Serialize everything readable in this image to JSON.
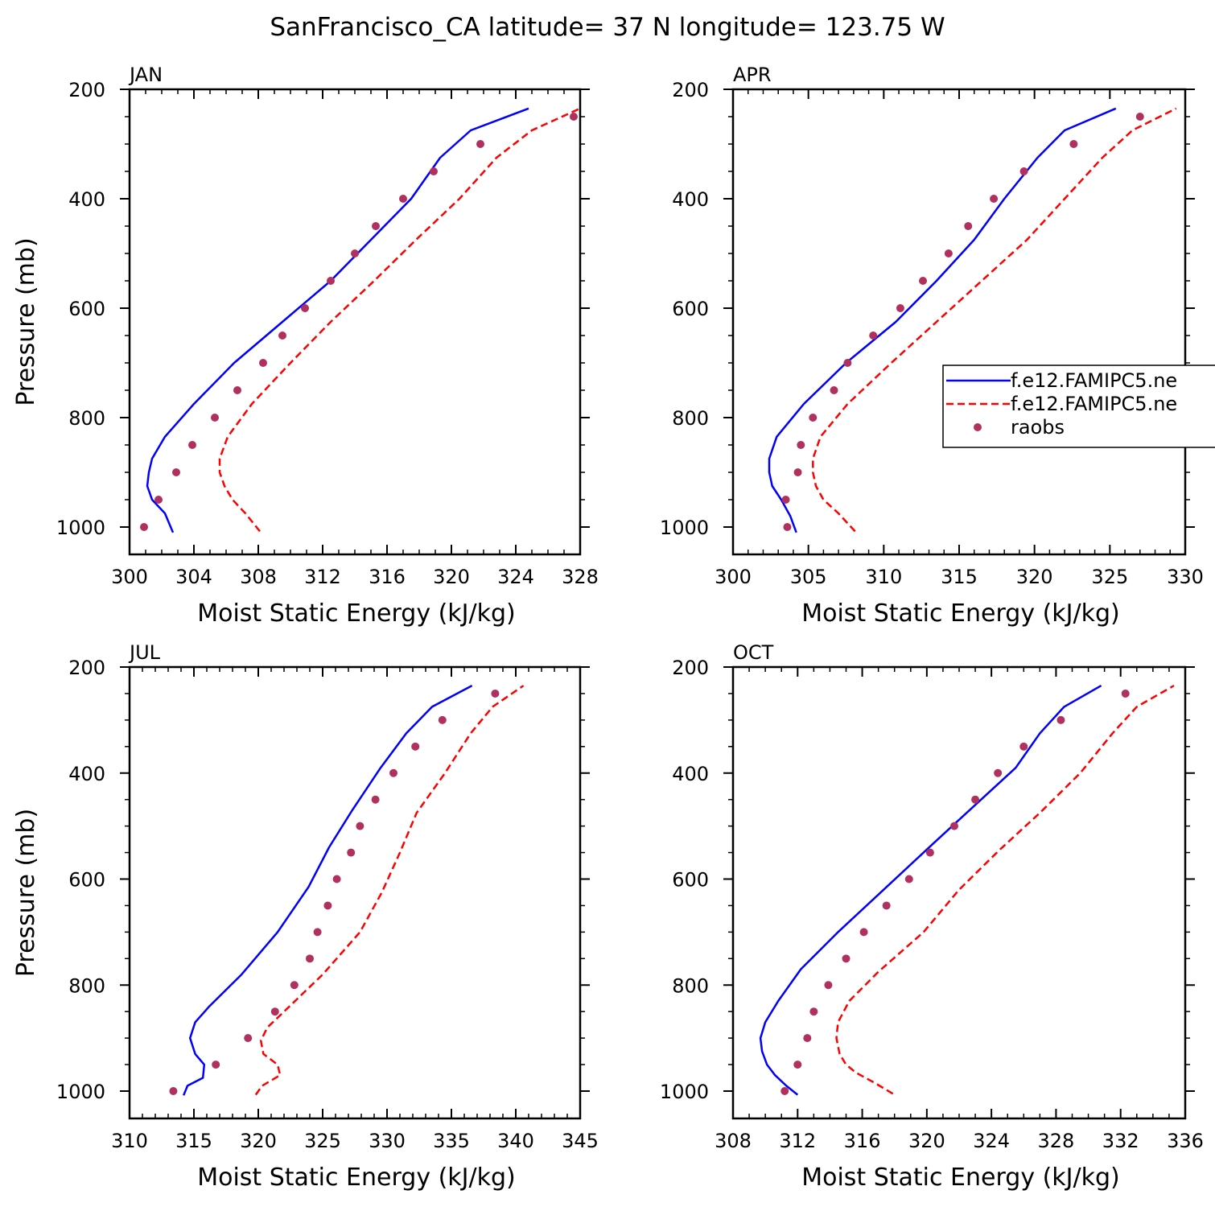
{
  "figure": {
    "title": "SanFrancisco_CA  latitude= 37 N longitude= 123.75 W"
  },
  "legend": {
    "entries": [
      {
        "label": "f.e12.FAMIPC5.ne",
        "style": "solid",
        "color": "#0000ff"
      },
      {
        "label": "f.e12.FAMIPC5.ne",
        "style": "dashed",
        "color": "#ff0000"
      },
      {
        "label": "raobs",
        "style": "dot",
        "color": "#b03060"
      }
    ]
  },
  "chart_data": [
    {
      "type": "line",
      "panel": "JAN",
      "xlabel": "Moist Static Energy (kJ/kg)",
      "ylabel": "Pressure (mb)",
      "xlim": [
        300,
        328
      ],
      "xticks": [
        300,
        304,
        308,
        312,
        316,
        320,
        324,
        328
      ],
      "ylim": [
        1025,
        200
      ],
      "yticks": [
        200,
        400,
        600,
        800,
        1000
      ],
      "series": [
        {
          "name": "f.e12.FAMIPC5.ne (solid)",
          "x": [
            302.7,
            302.2,
            301.4,
            301.1,
            301.2,
            301.4,
            302.2,
            304.0,
            306.5,
            309.5,
            312.5,
            315.0,
            317.5,
            319.3,
            321.2,
            324.8
          ],
          "y": [
            1010,
            975,
            950,
            925,
            900,
            875,
            835,
            775,
            700,
            625,
            550,
            475,
            400,
            325,
            275,
            235
          ]
        },
        {
          "name": "f.e12.FAMIPC5.ne (dashed)",
          "x": [
            308.1,
            307.2,
            306.4,
            305.9,
            305.6,
            305.6,
            306.1,
            307.6,
            310.0,
            312.5,
            315.2,
            317.8,
            320.5,
            322.8,
            325.0,
            328.0
          ],
          "y": [
            1008,
            975,
            950,
            925,
            900,
            875,
            835,
            775,
            700,
            625,
            550,
            475,
            400,
            325,
            275,
            235
          ]
        },
        {
          "name": "raobs",
          "x": [
            300.9,
            301.8,
            302.9,
            303.9,
            305.3,
            306.7,
            308.3,
            309.5,
            310.9,
            312.5,
            314.0,
            315.3,
            317.0,
            318.9,
            321.8,
            327.6
          ],
          "y": [
            1000,
            950,
            900,
            850,
            800,
            750,
            700,
            650,
            600,
            550,
            500,
            450,
            400,
            350,
            300,
            250
          ]
        }
      ]
    },
    {
      "type": "line",
      "panel": "APR",
      "xlabel": "Moist Static Energy (kJ/kg)",
      "ylabel": "",
      "xlim": [
        300,
        330
      ],
      "xticks": [
        300,
        305,
        310,
        315,
        320,
        325,
        330
      ],
      "ylim": [
        1025,
        200
      ],
      "yticks": [
        200,
        400,
        600,
        800,
        1000
      ],
      "series": [
        {
          "name": "f.e12.FAMIPC5.ne (solid)",
          "x": [
            304.2,
            303.8,
            303.2,
            302.6,
            302.4,
            302.4,
            302.9,
            304.7,
            307.5,
            310.8,
            313.5,
            316.0,
            318.0,
            320.2,
            322.0,
            325.4
          ],
          "y": [
            1010,
            980,
            950,
            925,
            900,
            875,
            835,
            775,
            700,
            625,
            550,
            475,
            400,
            325,
            275,
            235
          ]
        },
        {
          "name": "f.e12.FAMIPC5.ne (dashed)",
          "x": [
            308.1,
            307.0,
            306.0,
            305.5,
            305.3,
            305.3,
            305.8,
            307.6,
            310.5,
            313.5,
            316.5,
            319.5,
            322.0,
            324.5,
            326.5,
            329.4
          ],
          "y": [
            1008,
            975,
            950,
            925,
            900,
            875,
            835,
            775,
            700,
            625,
            550,
            475,
            400,
            325,
            275,
            235
          ]
        },
        {
          "name": "raobs",
          "x": [
            303.6,
            303.5,
            304.3,
            304.5,
            305.3,
            306.7,
            307.6,
            309.3,
            311.1,
            312.6,
            314.3,
            315.6,
            317.3,
            319.3,
            322.6,
            327.0
          ],
          "y": [
            1000,
            950,
            900,
            850,
            800,
            750,
            700,
            650,
            600,
            550,
            500,
            450,
            400,
            350,
            300,
            250
          ]
        }
      ]
    },
    {
      "type": "line",
      "panel": "JUL",
      "xlabel": "Moist Static Energy (kJ/kg)",
      "ylabel": "Pressure (mb)",
      "xlim": [
        310,
        345
      ],
      "xticks": [
        310,
        315,
        320,
        325,
        330,
        335,
        340,
        345
      ],
      "ylim": [
        1025,
        200
      ],
      "yticks": [
        200,
        400,
        600,
        800,
        1000
      ],
      "series": [
        {
          "name": "f.e12.FAMIPC5.ne (solid)",
          "x": [
            314.2,
            314.5,
            315.7,
            315.8,
            315.1,
            314.7,
            315.1,
            316.2,
            318.7,
            321.5,
            323.9,
            325.5,
            327.3,
            329.5,
            331.5,
            333.5,
            336.6
          ],
          "y": [
            1008,
            990,
            975,
            950,
            930,
            900,
            870,
            840,
            780,
            700,
            615,
            540,
            470,
            390,
            325,
            275,
            235
          ]
        },
        {
          "name": "f.e12.FAMIPC5.ne (dashed)",
          "x": [
            319.8,
            320.3,
            321.7,
            321.5,
            320.4,
            320.2,
            320.7,
            322.0,
            325.0,
            327.9,
            329.6,
            331.0,
            332.3,
            334.5,
            336.5,
            338.2,
            340.6
          ],
          "y": [
            1007,
            990,
            970,
            950,
            930,
            905,
            880,
            850,
            780,
            700,
            625,
            550,
            475,
            400,
            325,
            275,
            235
          ]
        },
        {
          "name": "raobs",
          "x": [
            313.4,
            316.7,
            319.2,
            321.3,
            322.8,
            324.0,
            324.6,
            325.4,
            326.1,
            327.2,
            327.9,
            329.1,
            330.5,
            332.2,
            334.3,
            338.4
          ],
          "y": [
            1000,
            950,
            900,
            850,
            800,
            750,
            700,
            650,
            600,
            550,
            500,
            450,
            400,
            350,
            300,
            250
          ]
        }
      ]
    },
    {
      "type": "line",
      "panel": "OCT",
      "xlabel": "Moist Static Energy (kJ/kg)",
      "ylabel": "",
      "xlim": [
        308,
        336
      ],
      "xticks": [
        308,
        312,
        316,
        320,
        324,
        328,
        332,
        336
      ],
      "ylim": [
        1025,
        200
      ],
      "yticks": [
        200,
        400,
        600,
        800,
        1000
      ],
      "series": [
        {
          "name": "f.e12.FAMIPC5.ne (solid)",
          "x": [
            312.0,
            311.3,
            310.6,
            310.1,
            309.8,
            309.7,
            310.0,
            310.8,
            312.2,
            314.5,
            317.5,
            320.5,
            323.0,
            325.5,
            327.0,
            328.5,
            330.8
          ],
          "y": [
            1007,
            990,
            970,
            950,
            925,
            900,
            870,
            830,
            770,
            700,
            615,
            530,
            460,
            390,
            325,
            275,
            235
          ]
        },
        {
          "name": "f.e12.FAMIPC5.ne (dashed)",
          "x": [
            317.9,
            316.8,
            315.6,
            315.0,
            314.6,
            314.4,
            314.5,
            315.2,
            317.0,
            319.8,
            322.0,
            324.5,
            327.0,
            329.5,
            331.5,
            333.0,
            335.3
          ],
          "y": [
            1005,
            985,
            965,
            950,
            930,
            900,
            870,
            830,
            775,
            700,
            620,
            545,
            475,
            400,
            325,
            275,
            235
          ]
        },
        {
          "name": "raobs",
          "x": [
            311.2,
            312.0,
            312.6,
            313.0,
            313.9,
            315.0,
            316.1,
            317.5,
            318.9,
            320.2,
            321.7,
            323.0,
            324.4,
            326.0,
            328.3,
            332.3
          ],
          "y": [
            1000,
            950,
            900,
            850,
            800,
            750,
            700,
            650,
            600,
            550,
            500,
            450,
            400,
            350,
            300,
            250
          ]
        }
      ]
    }
  ]
}
